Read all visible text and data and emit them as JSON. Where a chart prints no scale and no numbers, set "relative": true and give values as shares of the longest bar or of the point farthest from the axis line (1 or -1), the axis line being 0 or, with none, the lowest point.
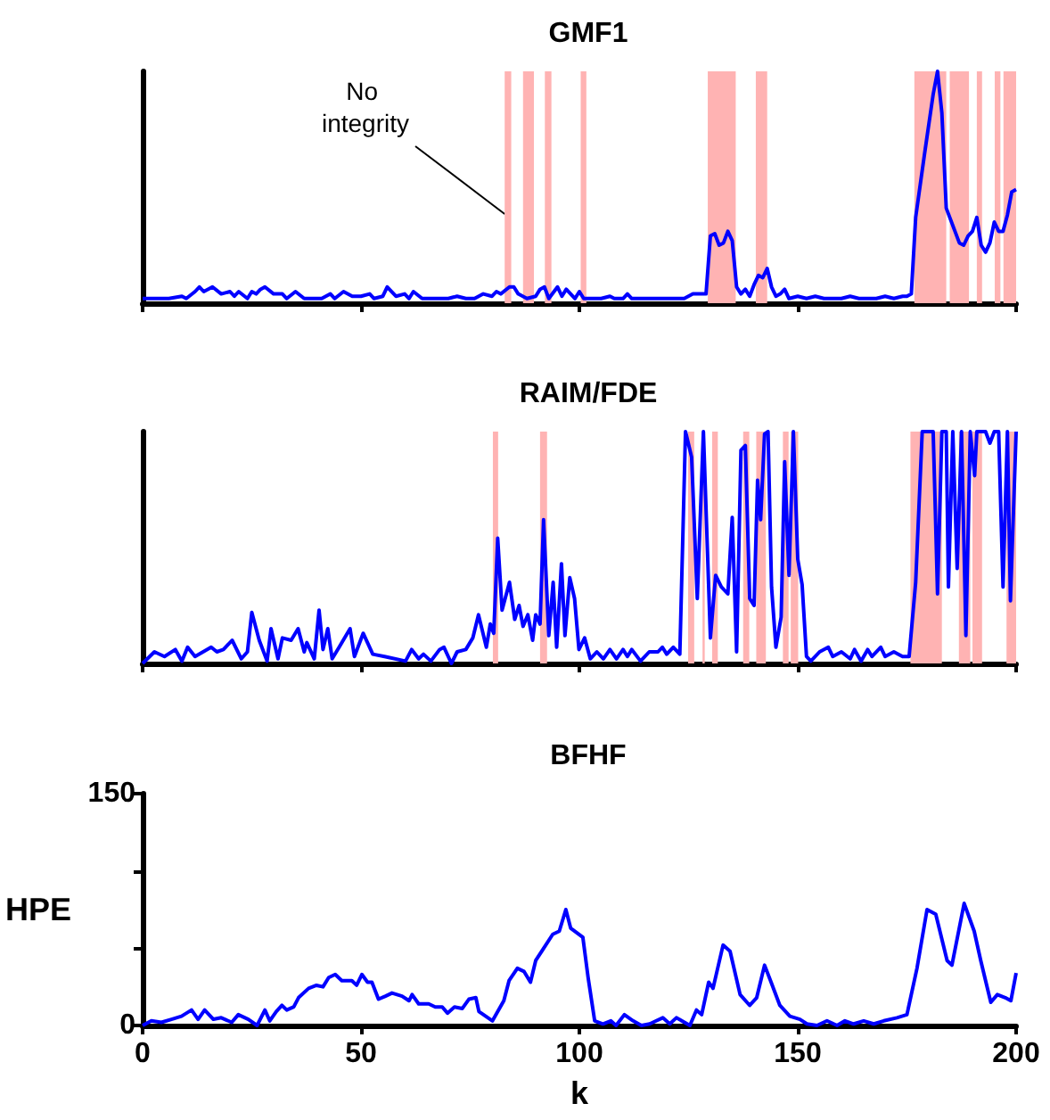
{
  "chart_data": [
    {
      "type": "line",
      "title": "GMF1",
      "relative": true,
      "xlim": [
        0,
        200
      ],
      "xticks": [
        0,
        50,
        100,
        150,
        200
      ],
      "tick_labels": false,
      "x": [
        0,
        3,
        6,
        9,
        10,
        12,
        13,
        14,
        16,
        18,
        20,
        21,
        22,
        24,
        25,
        26,
        27,
        28,
        30,
        32,
        33,
        35,
        37,
        39,
        41,
        43,
        44,
        46,
        48,
        50,
        52,
        53,
        55,
        56,
        58,
        60,
        61,
        62,
        64,
        66,
        68,
        70,
        72,
        74,
        76,
        78,
        80,
        81,
        82,
        84,
        85,
        86,
        88,
        90,
        91,
        92,
        93,
        95,
        96,
        97,
        98,
        99,
        100,
        101,
        103,
        105,
        107,
        108,
        110,
        111,
        112,
        114,
        116,
        118,
        120,
        122,
        124,
        126,
        128,
        129,
        130,
        131,
        132,
        133,
        134,
        135,
        136,
        137,
        138,
        139,
        140,
        141,
        142,
        143,
        144,
        145,
        146,
        147,
        148,
        150,
        152,
        154,
        156,
        158,
        160,
        162,
        164,
        166,
        168,
        170,
        172,
        174,
        175,
        176,
        177,
        179,
        181,
        182,
        183,
        184,
        185,
        186,
        187,
        188,
        189,
        190,
        191,
        192,
        193,
        194,
        195,
        196,
        197,
        198,
        199,
        200
      ],
      "series": [
        {
          "color": "#0000ff",
          "values": [
            0.02,
            0.02,
            0.02,
            0.03,
            0.02,
            0.05,
            0.07,
            0.05,
            0.07,
            0.04,
            0.05,
            0.03,
            0.05,
            0.02,
            0.05,
            0.04,
            0.06,
            0.07,
            0.04,
            0.04,
            0.02,
            0.05,
            0.02,
            0.02,
            0.02,
            0.04,
            0.02,
            0.05,
            0.03,
            0.03,
            0.04,
            0.02,
            0.03,
            0.07,
            0.03,
            0.04,
            0.02,
            0.05,
            0.02,
            0.02,
            0.02,
            0.02,
            0.03,
            0.02,
            0.02,
            0.04,
            0.03,
            0.05,
            0.04,
            0.07,
            0.07,
            0.04,
            0.02,
            0.03,
            0.06,
            0.07,
            0.02,
            0.07,
            0.03,
            0.06,
            0.04,
            0.02,
            0.05,
            0.02,
            0.02,
            0.02,
            0.03,
            0.02,
            0.02,
            0.04,
            0.02,
            0.02,
            0.02,
            0.02,
            0.02,
            0.02,
            0.02,
            0.04,
            0.04,
            0.04,
            0.29,
            0.3,
            0.25,
            0.26,
            0.31,
            0.27,
            0.07,
            0.04,
            0.06,
            0.03,
            0.08,
            0.12,
            0.11,
            0.15,
            0.07,
            0.03,
            0.04,
            0.06,
            0.02,
            0.03,
            0.02,
            0.03,
            0.02,
            0.02,
            0.02,
            0.03,
            0.02,
            0.02,
            0.02,
            0.03,
            0.02,
            0.03,
            0.03,
            0.04,
            0.37,
            0.64,
            0.9,
            1,
            0.82,
            0.41,
            0.36,
            0.31,
            0.26,
            0.25,
            0.29,
            0.31,
            0.37,
            0.25,
            0.22,
            0.26,
            0.35,
            0.31,
            0.31,
            0.38,
            0.48,
            0.49
          ]
        }
      ],
      "bands": [
        {
          "axis": "x",
          "from": 82.9,
          "to": 84.4,
          "color": "#ffb3b3"
        },
        {
          "axis": "x",
          "from": 87.1,
          "to": 89.6,
          "color": "#ffb3b3"
        },
        {
          "axis": "x",
          "from": 92.1,
          "to": 93.6,
          "color": "#ffb3b3"
        },
        {
          "axis": "x",
          "from": 100.3,
          "to": 101.6,
          "color": "#ffb3b3"
        },
        {
          "axis": "x",
          "from": 129.4,
          "to": 135.8,
          "color": "#ffb3b3"
        },
        {
          "axis": "x",
          "from": 140.4,
          "to": 143,
          "color": "#ffb3b3"
        },
        {
          "axis": "x",
          "from": 176.7,
          "to": 184,
          "color": "#ffb3b3"
        },
        {
          "axis": "x",
          "from": 184.8,
          "to": 189.2,
          "color": "#ffb3b3"
        },
        {
          "axis": "x",
          "from": 191,
          "to": 192.2,
          "color": "#ffb3b3"
        },
        {
          "axis": "x",
          "from": 195.1,
          "to": 196.4,
          "color": "#ffb3b3"
        },
        {
          "axis": "x",
          "from": 197.1,
          "to": 200,
          "color": "#ffb3b3"
        }
      ],
      "annotations": [
        "No integrity"
      ]
    },
    {
      "type": "line",
      "title": "RAIM/FDE",
      "relative": true,
      "xlim": [
        0,
        200
      ],
      "xticks": [
        0,
        50,
        100,
        150,
        200
      ],
      "tick_labels": false,
      "x": [
        0,
        2.7,
        5,
        7.5,
        9,
        10.3,
        12,
        15.7,
        17,
        18.5,
        20.5,
        22.6,
        24,
        25,
        26.7,
        28.5,
        29.4,
        31,
        32,
        34,
        35.6,
        37,
        37.6,
        39.3,
        40.4,
        41.3,
        42.4,
        43.4,
        45,
        47.5,
        48.5,
        50.5,
        52.7,
        55.4,
        60.2,
        61.6,
        63.2,
        64.3,
        66,
        68,
        69,
        70.7,
        72,
        74,
        75.6,
        76.9,
        78.7,
        79.6,
        80.4,
        81.3,
        82.3,
        84,
        85.2,
        86.2,
        87.1,
        88.2,
        89.3,
        90,
        91,
        91.8,
        93,
        94,
        94.8,
        95.9,
        96.7,
        97.8,
        98.9,
        99.9,
        101.2,
        102.5,
        104,
        105.5,
        107,
        108.5,
        110,
        111,
        112,
        114,
        116,
        118,
        119,
        120,
        121.5,
        123,
        124.3,
        125.7,
        127,
        128.4,
        130,
        131.2,
        132.5,
        134,
        135,
        136,
        137,
        138,
        139,
        140,
        140.8,
        141.5,
        142.4,
        143.2,
        144,
        145,
        146.2,
        147,
        148,
        149,
        150,
        151,
        152,
        153,
        155,
        157,
        158,
        160,
        162,
        163,
        164.5,
        166,
        167,
        169,
        170,
        172,
        174,
        175.5,
        177,
        178.5,
        181,
        181.5,
        182,
        183,
        184,
        184.5,
        185.5,
        186.5,
        187.5,
        188.5,
        189.5,
        190.5,
        191,
        193,
        194,
        195,
        196,
        197,
        198,
        198.7,
        200
      ],
      "series": [
        {
          "color": "#0000ff",
          "values": [
            0,
            0.05,
            0.03,
            0.06,
            0.01,
            0.07,
            0.03,
            0.07,
            0.05,
            0.06,
            0.1,
            0.02,
            0.05,
            0.22,
            0.1,
            0.01,
            0.15,
            0.02,
            0.11,
            0.1,
            0.15,
            0.05,
            0.09,
            0.02,
            0.23,
            0.06,
            0.15,
            0.02,
            0.07,
            0.15,
            0.03,
            0.13,
            0.04,
            0.03,
            0.01,
            0.06,
            0.02,
            0.04,
            0.01,
            0.06,
            0.07,
            0,
            0.05,
            0.06,
            0.11,
            0.21,
            0.07,
            0.17,
            0.13,
            0.54,
            0.23,
            0.35,
            0.19,
            0.25,
            0.16,
            0.21,
            0.1,
            0.21,
            0.17,
            0.62,
            0.12,
            0.35,
            0.07,
            0.43,
            0.12,
            0.37,
            0.28,
            0.06,
            0.11,
            0.02,
            0.05,
            0.02,
            0.06,
            0.02,
            0.06,
            0.03,
            0.06,
            0.01,
            0.05,
            0.05,
            0.07,
            0.04,
            0.07,
            0.04,
            1,
            0.89,
            0.28,
            1,
            0.11,
            0.38,
            0.33,
            0.3,
            0.63,
            0.05,
            0.92,
            0.94,
            0.28,
            0.25,
            0.79,
            0.62,
            0.99,
            1,
            0.33,
            0.07,
            0.2,
            0.87,
            0.38,
            1,
            0.45,
            0.34,
            0.03,
            0.01,
            0.05,
            0.07,
            0.03,
            0.05,
            0.02,
            0.06,
            0.01,
            0.06,
            0.03,
            0.07,
            0.03,
            0.05,
            0.03,
            0.03,
            0.35,
            1,
            1,
            0.66,
            0.3,
            1,
            1,
            0.33,
            1,
            0.41,
            1,
            0.12,
            1,
            0.81,
            1,
            1,
            0.95,
            1,
            1,
            0.33,
            1,
            0.27,
            1
          ]
        }
      ],
      "bands": [
        {
          "axis": "x",
          "from": 80.2,
          "to": 81.4,
          "color": "#ffb3b3"
        },
        {
          "axis": "x",
          "from": 91,
          "to": 92.6,
          "color": "#ffb3b3"
        },
        {
          "axis": "x",
          "from": 124.9,
          "to": 126.3,
          "color": "#ffb3b3"
        },
        {
          "axis": "x",
          "from": 128.2,
          "to": 128.7,
          "color": "#ffb3b3"
        },
        {
          "axis": "x",
          "from": 130.4,
          "to": 131.7,
          "color": "#ffb3b3"
        },
        {
          "axis": "x",
          "from": 137.5,
          "to": 138.9,
          "color": "#ffb3b3"
        },
        {
          "axis": "x",
          "from": 140.5,
          "to": 142.7,
          "color": "#ffb3b3"
        },
        {
          "axis": "x",
          "from": 146.6,
          "to": 147.9,
          "color": "#ffb3b3"
        },
        {
          "axis": "x",
          "from": 148.4,
          "to": 150.1,
          "color": "#ffb3b3"
        },
        {
          "axis": "x",
          "from": 175.8,
          "to": 183,
          "color": "#ffb3b3"
        },
        {
          "axis": "x",
          "from": 186.9,
          "to": 189.5,
          "color": "#ffb3b3"
        },
        {
          "axis": "x",
          "from": 190,
          "to": 192.2,
          "color": "#ffb3b3"
        },
        {
          "axis": "x",
          "from": 197.8,
          "to": 200,
          "color": "#ffb3b3"
        }
      ]
    },
    {
      "type": "line",
      "title": "BFHF",
      "xlabel": "k",
      "ylabel": "HPE",
      "xlim": [
        0,
        200
      ],
      "ylim": [
        0,
        150
      ],
      "xticks": [
        0,
        50,
        100,
        150,
        200
      ],
      "yticks": [
        0,
        {
          "value": 50,
          "label": null
        },
        {
          "value": 100,
          "label": null
        },
        150
      ],
      "x": [
        0,
        2,
        4.3,
        6.6,
        8.9,
        11.2,
        12.7,
        14.2,
        16.2,
        18,
        20.4,
        21.9,
        24.2,
        26.2,
        28,
        29.1,
        30.6,
        31.9,
        33,
        34.6,
        35.7,
        38,
        39.8,
        41.3,
        42.6,
        44.1,
        45.6,
        47.9,
        49,
        50.2,
        51.5,
        52.5,
        54,
        55.6,
        57.1,
        59.4,
        61,
        61.7,
        63.2,
        65.5,
        67,
        68.6,
        69.8,
        71.4,
        73.2,
        74.7,
        76.3,
        77,
        80.1,
        82.7,
        83.9,
        85.8,
        87.3,
        88.8,
        90,
        91.6,
        93.9,
        95.4,
        96.9,
        98,
        100.8,
        102,
        103.5,
        105.4,
        107.2,
        108.4,
        110.3,
        112.3,
        114.2,
        116.1,
        117.6,
        119.1,
        120.7,
        122.2,
        125.3,
        126.8,
        128,
        129.6,
        130.6,
        132.9,
        134.5,
        136.8,
        139,
        140.6,
        142.4,
        143.9,
        145.9,
        148.2,
        150.5,
        152.1,
        154.4,
        156.7,
        159,
        160.8,
        162.8,
        165.1,
        167.4,
        169.7,
        172.7,
        175,
        177.3,
        179.6,
        181.6,
        184.2,
        185.3,
        188.1,
        190.4,
        191.9,
        194.2,
        195.7,
        197.5,
        198.8,
        200
      ],
      "series": [
        {
          "color": "#0000ff",
          "values": [
            0,
            3,
            2,
            4,
            6,
            10,
            4,
            10,
            4,
            5,
            2,
            7,
            4,
            0,
            10,
            3,
            9,
            13,
            10,
            12,
            18,
            24,
            26,
            25,
            31,
            33,
            29,
            29,
            26,
            33,
            28,
            28,
            17,
            19,
            21,
            19,
            16,
            20,
            14,
            14,
            12,
            12,
            8,
            12,
            11,
            17,
            18,
            9,
            3,
            16,
            29,
            37,
            35,
            28,
            42,
            49,
            59,
            61,
            75,
            63,
            57,
            31,
            3,
            1,
            3,
            0,
            7,
            3,
            0,
            1,
            3,
            5,
            1,
            5,
            0,
            10,
            7,
            28,
            24,
            52,
            48,
            20,
            13,
            18,
            39,
            28,
            13,
            6,
            4,
            1,
            0,
            3,
            0,
            3,
            1,
            3,
            1,
            3,
            5,
            7,
            37,
            75,
            72,
            42,
            39,
            79,
            61,
            42,
            15,
            20,
            18,
            16,
            34
          ]
        }
      ]
    }
  ]
}
